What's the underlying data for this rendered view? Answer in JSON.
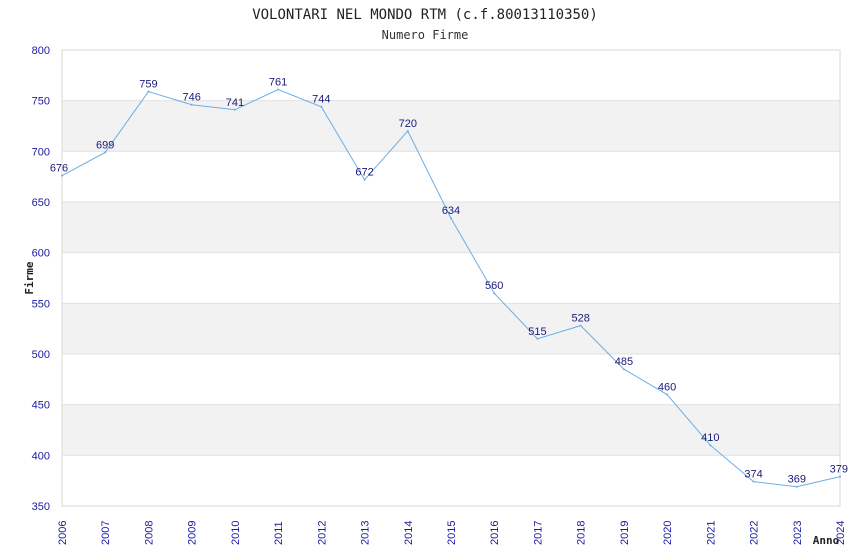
{
  "chart_data": {
    "type": "line",
    "title": "VOLONTARI NEL MONDO RTM (c.f.80013110350)",
    "subtitle": "Numero Firme",
    "xlabel": "Anno",
    "ylabel": "Firme",
    "x": [
      "2006",
      "2007",
      "2008",
      "2009",
      "2010",
      "2011",
      "2012",
      "2013",
      "2014",
      "2015",
      "2016",
      "2017",
      "2018",
      "2019",
      "2020",
      "2021",
      "2022",
      "2023",
      "2024"
    ],
    "values": [
      676,
      699,
      759,
      746,
      741,
      761,
      744,
      672,
      720,
      634,
      560,
      515,
      528,
      485,
      460,
      410,
      374,
      369,
      379
    ],
    "ylim": [
      350,
      800
    ],
    "yticks": [
      350,
      400,
      450,
      500,
      550,
      600,
      650,
      700,
      750,
      800
    ],
    "grid": true,
    "line_color": "#6aaee6",
    "band_color": "#f2f2f2",
    "tick_color": "#1a1aa6"
  }
}
